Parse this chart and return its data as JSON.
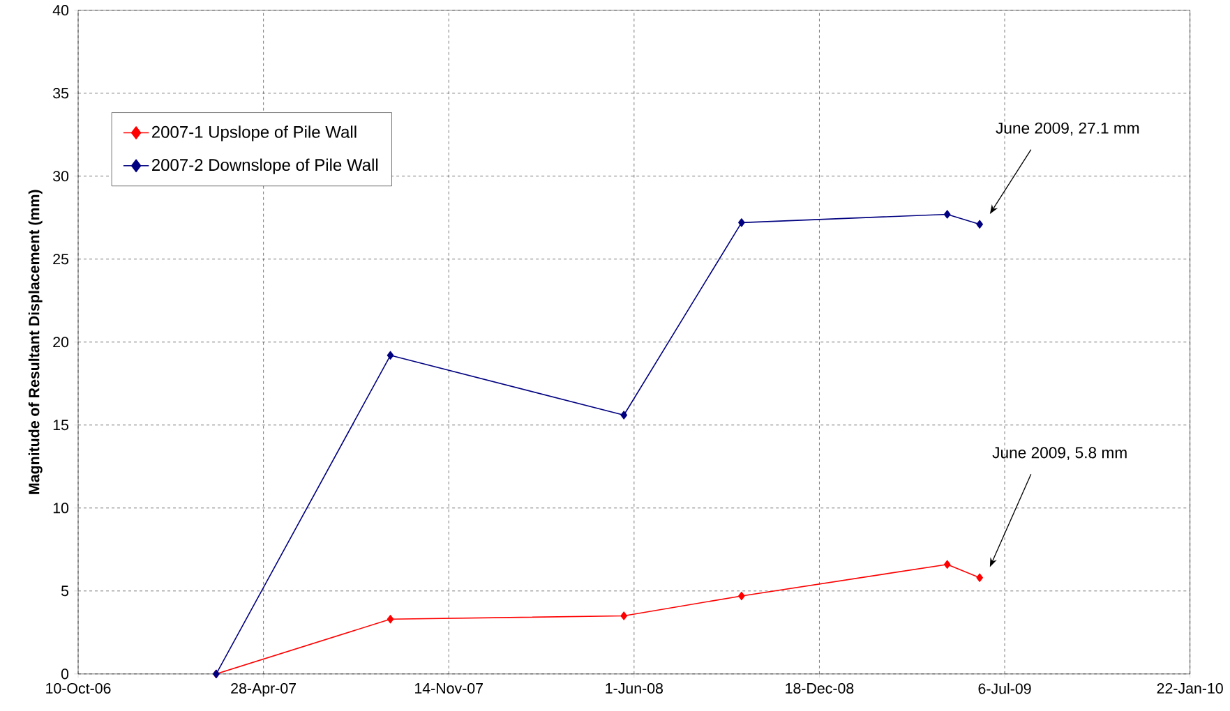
{
  "chart_data": {
    "type": "line",
    "ylabel": "Magnitude of Resultant Displacement (mm)",
    "x": [
      "2007-03-08",
      "2007-09-12",
      "2008-05-21",
      "2008-09-25",
      "2009-05-05",
      "2009-06-09"
    ],
    "series": [
      {
        "name": "2007-1 Upslope of Pile Wall",
        "color": "#ff0000",
        "values": [
          0,
          3.3,
          3.5,
          4.7,
          6.6,
          5.8
        ]
      },
      {
        "name": "2007-2 Downslope of Pile Wall",
        "color": "#000080",
        "values": [
          0,
          19.2,
          15.6,
          27.2,
          27.7,
          27.1
        ]
      }
    ],
    "xlim": [
      "2006-10-10",
      "2010-01-22"
    ],
    "xticks": [
      {
        "value": "2006-10-10",
        "label": "10-Oct-06"
      },
      {
        "value": "2007-04-28",
        "label": "28-Apr-07"
      },
      {
        "value": "2007-11-14",
        "label": "14-Nov-07"
      },
      {
        "value": "2008-06-01",
        "label": "1-Jun-08"
      },
      {
        "value": "2008-12-18",
        "label": "18-Dec-08"
      },
      {
        "value": "2009-07-06",
        "label": "6-Jul-09"
      },
      {
        "value": "2010-01-22",
        "label": "22-Jan-10"
      }
    ],
    "ylim": [
      0,
      40
    ],
    "yticks": [
      0,
      5,
      10,
      15,
      20,
      25,
      30,
      35,
      40
    ],
    "grid": true,
    "legend": "top left",
    "marker": "diamond",
    "line_style": "solid",
    "annotations": [
      "June 2009, 27.1 mm",
      "June 2009, 5.8 mm"
    ]
  }
}
